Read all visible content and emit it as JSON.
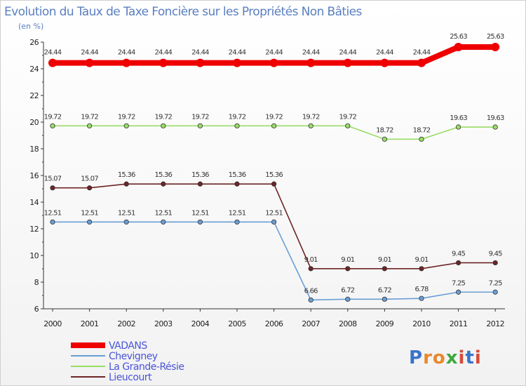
{
  "chart_data": {
    "type": "line",
    "title": "Evolution du Taux de Taxe Foncière sur les Propriétés Non Bâties",
    "ylabel": "(en %)",
    "xlabel": "",
    "x": [
      "2000",
      "2001",
      "2002",
      "2003",
      "2004",
      "2005",
      "2006",
      "2007",
      "2008",
      "2009",
      "2010",
      "2011",
      "2012"
    ],
    "ylim": [
      6,
      26
    ],
    "yticks": [
      6,
      8,
      10,
      12,
      14,
      16,
      18,
      20,
      22,
      24,
      26
    ],
    "grid": false,
    "legend_position": "bottom-left",
    "series": [
      {
        "name": "VADANS",
        "color": "#ee0000",
        "values": [
          24.44,
          24.44,
          24.44,
          24.44,
          24.44,
          24.44,
          24.44,
          24.44,
          24.44,
          24.44,
          24.44,
          25.63,
          25.63
        ],
        "labels": [
          "24.44",
          "24.44",
          "24.44",
          "24.44",
          "24.44",
          "24.44",
          "24.44",
          "24.44",
          "24.44",
          "24.44",
          "24.44",
          "25.63",
          "25.63"
        ]
      },
      {
        "name": "Chevigney",
        "color": "#6a9ed4",
        "values": [
          12.51,
          12.51,
          12.51,
          12.51,
          12.51,
          12.51,
          12.51,
          6.66,
          6.72,
          6.72,
          6.78,
          7.25,
          7.25
        ],
        "labels": [
          "12.51",
          "12.51",
          "12.51",
          "12.51",
          "12.51",
          "12.51",
          "12.51",
          "6.66",
          "6.72",
          "6.72",
          "6.78",
          "7.25",
          "7.25"
        ]
      },
      {
        "name": "La Grande-Résie",
        "color": "#99dd66",
        "values": [
          19.72,
          19.72,
          19.72,
          19.72,
          19.72,
          19.72,
          19.72,
          19.72,
          19.72,
          18.72,
          18.72,
          19.63,
          19.63
        ],
        "labels": [
          "19.72",
          "19.72",
          "19.72",
          "19.72",
          "19.72",
          "19.72",
          "19.72",
          "19.72",
          "19.72",
          "18.72",
          "18.72",
          "19.63",
          "19.63"
        ]
      },
      {
        "name": "Lieucourt",
        "color": "#6e2426",
        "values": [
          15.07,
          15.07,
          15.36,
          15.36,
          15.36,
          15.36,
          15.36,
          9.01,
          9.01,
          9.01,
          9.01,
          9.45,
          9.45
        ],
        "labels": [
          "15.07",
          "15.07",
          "15.36",
          "15.36",
          "15.36",
          "15.36",
          "15.36",
          "9.01",
          "9.01",
          "9.01",
          "9.01",
          "9.45",
          "9.45"
        ]
      }
    ]
  },
  "brand": {
    "text": "Proxiti",
    "letters": [
      "P",
      "r",
      "o",
      "x",
      "i",
      "t",
      "i"
    ],
    "colors": [
      "#3a74c9",
      "#e8892b",
      "#e8892b",
      "#3fa83f",
      "#d84a3a",
      "#3a74c9",
      "#d84a3a"
    ]
  }
}
